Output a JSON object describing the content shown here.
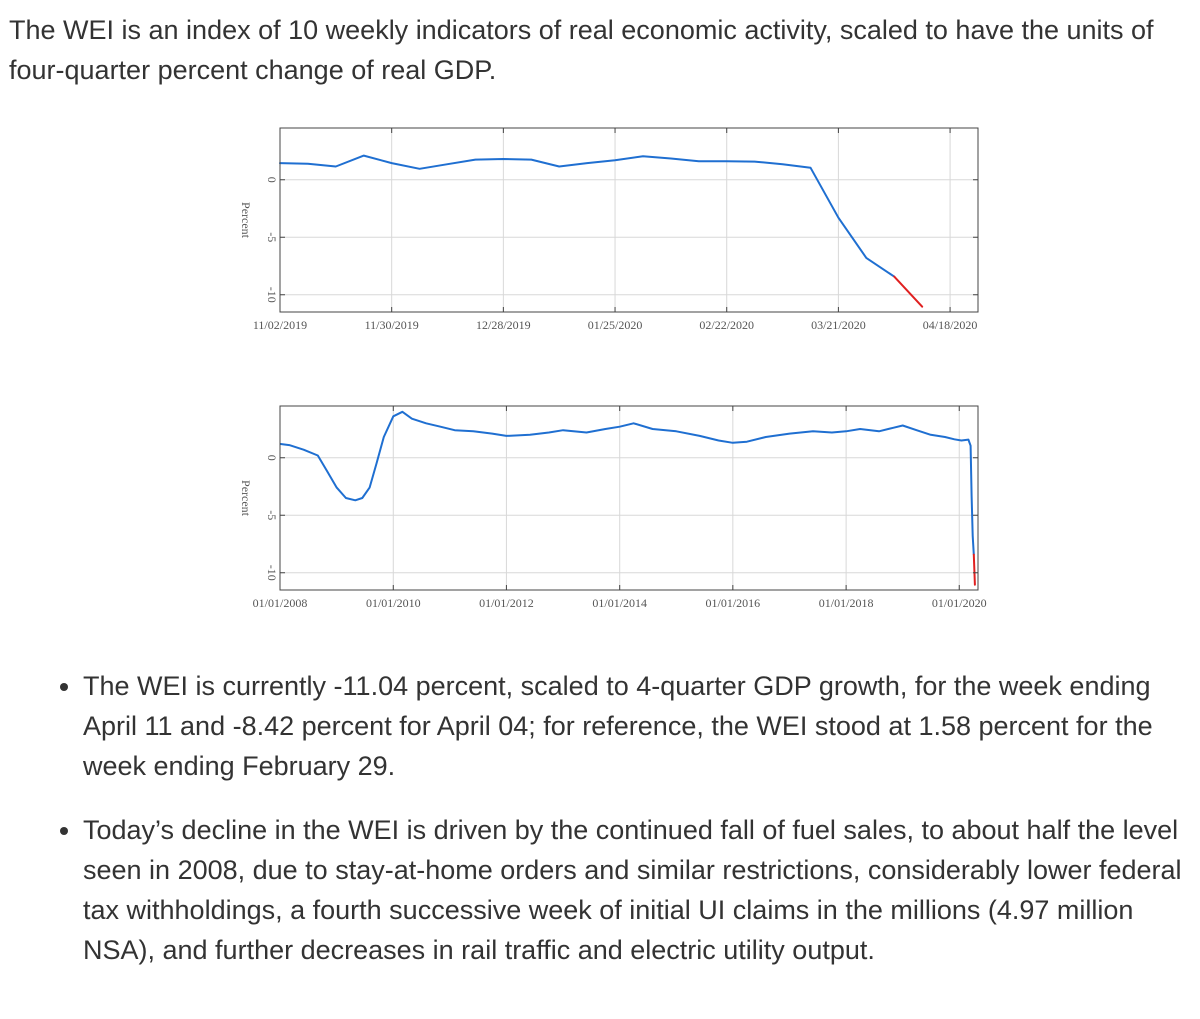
{
  "intro": "The WEI is an index of 10 weekly indicators of real economic activity, scaled to have the units of four-quarter percent change of real GDP.",
  "colors": {
    "series": "#1f6fd1",
    "latest": "#e02020"
  },
  "chart_data": [
    {
      "type": "line",
      "title": "",
      "xlabel": "",
      "ylabel": "Percent",
      "grid": true,
      "xlim": [
        "11/02/2019",
        "04/25/2020"
      ],
      "ylim": [
        -11.5,
        4.5
      ],
      "xticks": [
        "11/02/2019",
        "11/30/2019",
        "12/28/2019",
        "01/25/2020",
        "02/22/2020",
        "03/21/2020",
        "04/18/2020"
      ],
      "yticks": [
        0,
        -5,
        -10
      ],
      "ytick_labels": [
        "0",
        "-5",
        "-10"
      ],
      "series": [
        {
          "color": "#1f6fd1",
          "x": [
            "11/02/2019",
            "11/09/2019",
            "11/16/2019",
            "11/23/2019",
            "11/30/2019",
            "12/07/2019",
            "12/14/2019",
            "12/21/2019",
            "12/28/2019",
            "01/04/2020",
            "01/11/2020",
            "01/18/2020",
            "01/25/2020",
            "02/01/2020",
            "02/08/2020",
            "02/15/2020",
            "02/22/2020",
            "02/29/2020",
            "03/07/2020",
            "03/14/2020",
            "03/21/2020",
            "03/28/2020",
            "04/04/2020"
          ],
          "y": [
            1.45,
            1.4,
            1.15,
            2.1,
            1.45,
            0.95,
            1.35,
            1.75,
            1.8,
            1.75,
            1.15,
            1.45,
            1.7,
            2.05,
            1.85,
            1.6,
            1.6,
            1.58,
            1.35,
            1.05,
            -3.3,
            -6.8,
            -8.42
          ]
        },
        {
          "color": "#e02020",
          "x": [
            "04/04/2020",
            "04/11/2020"
          ],
          "y": [
            -8.42,
            -11.04
          ]
        }
      ]
    },
    {
      "type": "line",
      "title": "",
      "xlabel": "",
      "ylabel": "Percent",
      "grid": true,
      "xlim": [
        "01/01/2008",
        "05/01/2020"
      ],
      "ylim": [
        -11.5,
        4.5
      ],
      "xticks": [
        "01/01/2008",
        "01/01/2010",
        "01/01/2012",
        "01/01/2014",
        "01/01/2016",
        "01/01/2018",
        "01/01/2020"
      ],
      "yticks": [
        0,
        -5,
        -10
      ],
      "ytick_labels": [
        "0",
        "-5",
        "-10"
      ],
      "series": [
        {
          "color": "#1f6fd1",
          "x": [
            "01/05/2008",
            "03/01/2008",
            "06/01/2008",
            "09/01/2008",
            "11/01/2008",
            "01/01/2009",
            "03/01/2009",
            "05/01/2009",
            "06/15/2009",
            "08/01/2009",
            "09/15/2009",
            "11/01/2009",
            "01/01/2010",
            "03/01/2010",
            "05/01/2010",
            "08/01/2010",
            "11/01/2010",
            "02/01/2011",
            "06/01/2011",
            "10/01/2011",
            "01/01/2012",
            "06/01/2012",
            "10/01/2012",
            "01/01/2013",
            "06/01/2013",
            "10/01/2013",
            "01/01/2014",
            "04/01/2014",
            "08/01/2014",
            "01/01/2015",
            "06/01/2015",
            "10/01/2015",
            "01/01/2016",
            "04/01/2016",
            "08/01/2016",
            "01/01/2017",
            "06/01/2017",
            "10/01/2017",
            "01/01/2018",
            "04/01/2018",
            "08/01/2018",
            "11/01/2018",
            "01/01/2019",
            "04/01/2019",
            "07/01/2019",
            "10/01/2019",
            "12/01/2019",
            "01/15/2020",
            "02/29/2020",
            "03/14/2020",
            "03/21/2020",
            "03/28/2020",
            "04/04/2020"
          ],
          "y": [
            1.2,
            1.1,
            0.7,
            0.2,
            -1.2,
            -2.6,
            -3.5,
            -3.7,
            -3.5,
            -2.6,
            -0.5,
            1.8,
            3.6,
            4.0,
            3.4,
            3.0,
            2.7,
            2.4,
            2.3,
            2.1,
            1.9,
            2.0,
            2.2,
            2.4,
            2.2,
            2.5,
            2.7,
            3.0,
            2.5,
            2.3,
            1.9,
            1.5,
            1.3,
            1.4,
            1.8,
            2.1,
            2.3,
            2.2,
            2.3,
            2.5,
            2.3,
            2.6,
            2.8,
            2.4,
            2.0,
            1.8,
            1.6,
            1.5,
            1.58,
            1.05,
            -3.3,
            -6.8,
            -8.42
          ]
        },
        {
          "color": "#e02020",
          "x": [
            "04/04/2020",
            "04/11/2020"
          ],
          "y": [
            -8.42,
            -11.04
          ]
        }
      ]
    }
  ],
  "bullets": [
    "The WEI is currently -11.04 percent, scaled to 4-quarter GDP growth, for the week ending April 11 and -8.42 percent for April 04; for reference, the WEI stood at 1.58 percent for the week ending February 29.",
    "Today’s decline in the WEI is driven by the continued fall of fuel sales, to about half the level seen in 2008, due to stay-at-home orders and similar restrictions, considerably lower federal tax withholdings, a fourth successive week of initial UI claims in the millions (4.97 million NSA), and further decreases in rail traffic and electric utility output."
  ]
}
